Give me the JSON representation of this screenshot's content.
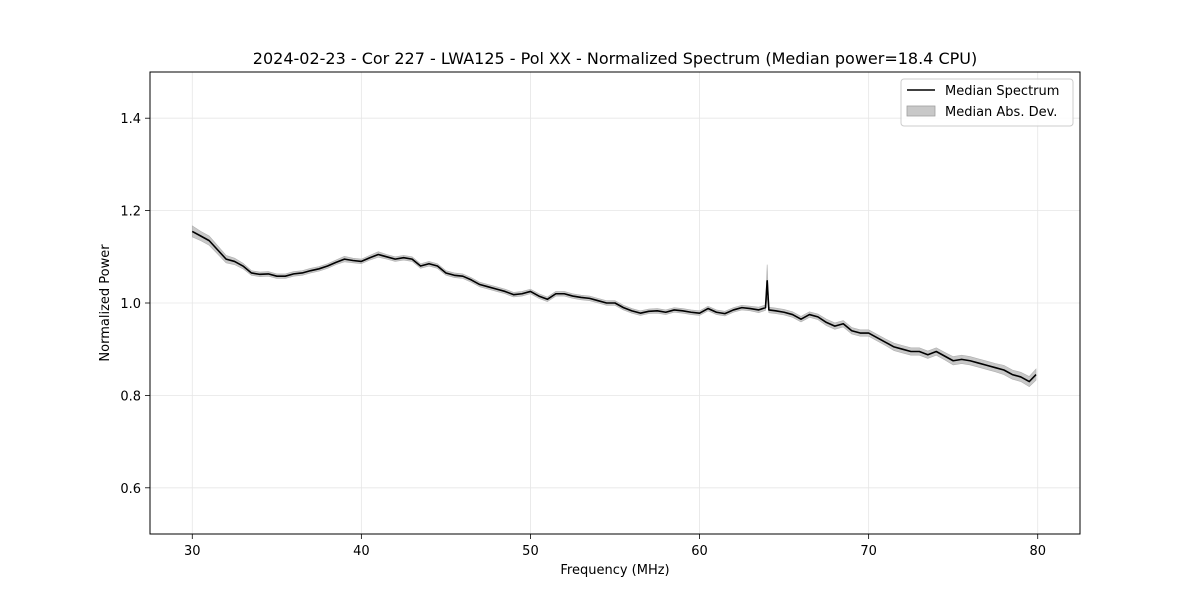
{
  "chart_data": {
    "type": "line",
    "title": "2024-02-23 - Cor 227 - LWA125 - Pol XX - Normalized Spectrum (Median power=18.4 CPU)",
    "xlabel": "Frequency (MHz)",
    "ylabel": "Normalized Power",
    "xlim": [
      27.5,
      82.5
    ],
    "ylim": [
      0.5,
      1.5
    ],
    "xticks": [
      30,
      40,
      50,
      60,
      70,
      80
    ],
    "yticks": [
      0.6,
      0.8,
      1.0,
      1.2,
      1.4
    ],
    "xtick_labels": [
      "30",
      "40",
      "50",
      "60",
      "70",
      "80"
    ],
    "ytick_labels": [
      "0.6",
      "0.8",
      "1.0",
      "1.2",
      "1.4"
    ],
    "grid": true,
    "legend_position": "top-right",
    "series": [
      {
        "name": "Median Spectrum",
        "color": "#000000",
        "x": [
          30.0,
          30.5,
          31.0,
          31.5,
          32.0,
          32.5,
          33.0,
          33.5,
          34.0,
          34.5,
          35.0,
          35.5,
          36.0,
          36.5,
          37.0,
          37.5,
          38.0,
          38.5,
          39.0,
          39.5,
          40.0,
          40.5,
          41.0,
          41.5,
          42.0,
          42.5,
          43.0,
          43.5,
          44.0,
          44.5,
          45.0,
          45.5,
          46.0,
          46.5,
          47.0,
          47.5,
          48.0,
          48.5,
          49.0,
          49.5,
          50.0,
          50.5,
          51.0,
          51.5,
          52.0,
          52.5,
          53.0,
          53.5,
          54.0,
          54.5,
          55.0,
          55.5,
          56.0,
          56.5,
          57.0,
          57.5,
          58.0,
          58.5,
          59.0,
          59.5,
          60.0,
          60.5,
          61.0,
          61.5,
          62.0,
          62.5,
          63.0,
          63.5,
          63.9,
          64.0,
          64.1,
          64.5,
          65.0,
          65.5,
          66.0,
          66.5,
          67.0,
          67.5,
          68.0,
          68.5,
          69.0,
          69.5,
          70.0,
          70.5,
          71.0,
          71.5,
          72.0,
          72.5,
          73.0,
          73.5,
          74.0,
          74.5,
          75.0,
          75.5,
          76.0,
          76.5,
          77.0,
          77.5,
          78.0,
          78.5,
          79.0,
          79.5,
          79.9
        ],
        "values": [
          1.155,
          1.145,
          1.135,
          1.115,
          1.095,
          1.09,
          1.08,
          1.065,
          1.062,
          1.063,
          1.058,
          1.058,
          1.063,
          1.065,
          1.07,
          1.074,
          1.08,
          1.088,
          1.095,
          1.092,
          1.09,
          1.098,
          1.105,
          1.1,
          1.095,
          1.098,
          1.095,
          1.08,
          1.085,
          1.08,
          1.065,
          1.06,
          1.058,
          1.05,
          1.04,
          1.035,
          1.03,
          1.025,
          1.018,
          1.02,
          1.025,
          1.015,
          1.008,
          1.02,
          1.02,
          1.015,
          1.012,
          1.01,
          1.005,
          1.0,
          1.0,
          0.99,
          0.983,
          0.978,
          0.982,
          0.983,
          0.98,
          0.985,
          0.983,
          0.98,
          0.978,
          0.988,
          0.98,
          0.977,
          0.985,
          0.99,
          0.988,
          0.985,
          0.99,
          1.048,
          0.985,
          0.983,
          0.98,
          0.975,
          0.965,
          0.975,
          0.97,
          0.958,
          0.95,
          0.955,
          0.94,
          0.935,
          0.935,
          0.925,
          0.915,
          0.905,
          0.9,
          0.895,
          0.895,
          0.888,
          0.895,
          0.885,
          0.875,
          0.878,
          0.875,
          0.87,
          0.865,
          0.86,
          0.855,
          0.845,
          0.84,
          0.83,
          0.845
        ]
      }
    ],
    "band": {
      "name": "Median Abs. Dev.",
      "color": "#c8c8c8",
      "halfwidth": [
        0.012,
        0.01,
        0.01,
        0.009,
        0.008,
        0.007,
        0.006,
        0.005,
        0.005,
        0.005,
        0.005,
        0.005,
        0.005,
        0.005,
        0.005,
        0.005,
        0.005,
        0.005,
        0.006,
        0.005,
        0.005,
        0.005,
        0.006,
        0.005,
        0.005,
        0.005,
        0.005,
        0.005,
        0.005,
        0.005,
        0.005,
        0.005,
        0.005,
        0.005,
        0.005,
        0.005,
        0.005,
        0.005,
        0.005,
        0.005,
        0.005,
        0.005,
        0.005,
        0.005,
        0.005,
        0.005,
        0.005,
        0.005,
        0.005,
        0.005,
        0.005,
        0.005,
        0.005,
        0.005,
        0.005,
        0.005,
        0.005,
        0.005,
        0.005,
        0.005,
        0.005,
        0.005,
        0.005,
        0.005,
        0.005,
        0.005,
        0.005,
        0.006,
        0.006,
        0.035,
        0.006,
        0.006,
        0.006,
        0.006,
        0.006,
        0.006,
        0.006,
        0.007,
        0.007,
        0.007,
        0.007,
        0.007,
        0.007,
        0.007,
        0.007,
        0.008,
        0.008,
        0.008,
        0.008,
        0.008,
        0.008,
        0.008,
        0.009,
        0.009,
        0.009,
        0.009,
        0.009,
        0.009,
        0.01,
        0.01,
        0.01,
        0.011,
        0.012
      ]
    },
    "legend": [
      "Median Spectrum",
      "Median Abs. Dev."
    ]
  }
}
